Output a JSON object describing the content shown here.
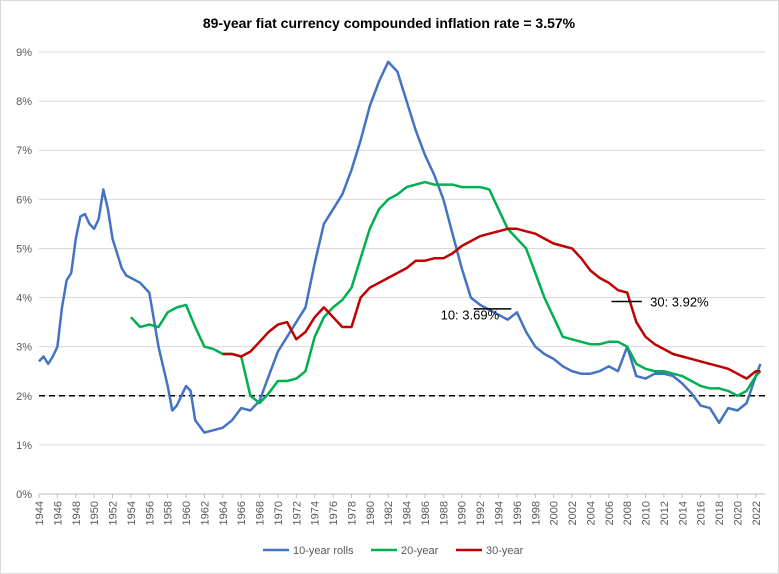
{
  "chart_data": {
    "type": "line",
    "title": "89-year fiat currency compounded inflation rate = 3.57%",
    "xlabel": "",
    "ylabel": "",
    "xlim": [
      1944,
      2023
    ],
    "ylim": [
      0,
      9
    ],
    "y_tick_labels": [
      "0%",
      "1%",
      "2%",
      "3%",
      "4%",
      "5%",
      "6%",
      "7%",
      "8%",
      "9%"
    ],
    "x_tick_labels": [
      "1944",
      "1946",
      "1948",
      "1950",
      "1952",
      "1954",
      "1956",
      "1958",
      "1960",
      "1962",
      "1964",
      "1966",
      "1968",
      "1970",
      "1972",
      "1974",
      "1976",
      "1978",
      "1980",
      "1982",
      "1984",
      "1986",
      "1988",
      "1990",
      "1992",
      "1994",
      "1996",
      "1998",
      "2000",
      "2002",
      "2004",
      "2006",
      "2008",
      "2010",
      "2012",
      "2014",
      "2016",
      "2018",
      "2020",
      "2022"
    ],
    "grid": "horizontal",
    "legend_position": "bottom",
    "colors": {
      "s10": "#4472c4",
      "s20": "#00b050",
      "s30": "#c00000",
      "ref": "#000000"
    },
    "reference_line": {
      "y": 2.0,
      "style": "dashed"
    },
    "series": [
      {
        "name": "10-year rolls",
        "points": [
          [
            1944,
            2.7
          ],
          [
            1944.5,
            2.8
          ],
          [
            1945,
            2.65
          ],
          [
            1945.5,
            2.8
          ],
          [
            1946,
            3.0
          ],
          [
            1946.5,
            3.8
          ],
          [
            1947,
            4.35
          ],
          [
            1947.5,
            4.5
          ],
          [
            1948,
            5.2
          ],
          [
            1948.5,
            5.65
          ],
          [
            1949,
            5.7
          ],
          [
            1949.5,
            5.5
          ],
          [
            1950,
            5.4
          ],
          [
            1950.5,
            5.6
          ],
          [
            1951,
            6.2
          ],
          [
            1951.5,
            5.8
          ],
          [
            1952,
            5.2
          ],
          [
            1952.5,
            4.9
          ],
          [
            1953,
            4.6
          ],
          [
            1953.5,
            4.45
          ],
          [
            1954,
            4.4
          ],
          [
            1955,
            4.3
          ],
          [
            1956,
            4.1
          ],
          [
            1957,
            3.0
          ],
          [
            1958,
            2.2
          ],
          [
            1958.5,
            1.7
          ],
          [
            1959,
            1.8
          ],
          [
            1959.5,
            2.0
          ],
          [
            1960,
            2.2
          ],
          [
            1960.5,
            2.1
          ],
          [
            1961,
            1.5
          ],
          [
            1962,
            1.25
          ],
          [
            1963,
            1.3
          ],
          [
            1964,
            1.35
          ],
          [
            1965,
            1.5
          ],
          [
            1966,
            1.75
          ],
          [
            1967,
            1.7
          ],
          [
            1968,
            1.9
          ],
          [
            1969,
            2.4
          ],
          [
            1970,
            2.9
          ],
          [
            1971,
            3.2
          ],
          [
            1972,
            3.5
          ],
          [
            1973,
            3.8
          ],
          [
            1974,
            4.7
          ],
          [
            1975,
            5.5
          ],
          [
            1976,
            5.8
          ],
          [
            1977,
            6.1
          ],
          [
            1978,
            6.6
          ],
          [
            1979,
            7.2
          ],
          [
            1980,
            7.9
          ],
          [
            1981,
            8.4
          ],
          [
            1982,
            8.8
          ],
          [
            1983,
            8.6
          ],
          [
            1984,
            8.0
          ],
          [
            1985,
            7.4
          ],
          [
            1986,
            6.9
          ],
          [
            1987,
            6.5
          ],
          [
            1988,
            6.0
          ],
          [
            1989,
            5.3
          ],
          [
            1990,
            4.6
          ],
          [
            1991,
            4.0
          ],
          [
            1992,
            3.85
          ],
          [
            1993,
            3.75
          ],
          [
            1994,
            3.65
          ],
          [
            1995,
            3.55
          ],
          [
            1996,
            3.7
          ],
          [
            1997,
            3.3
          ],
          [
            1998,
            3.0
          ],
          [
            1999,
            2.85
          ],
          [
            2000,
            2.75
          ],
          [
            2001,
            2.6
          ],
          [
            2002,
            2.5
          ],
          [
            2003,
            2.45
          ],
          [
            2004,
            2.45
          ],
          [
            2005,
            2.5
          ],
          [
            2006,
            2.6
          ],
          [
            2007,
            2.5
          ],
          [
            2008,
            3.0
          ],
          [
            2009,
            2.4
          ],
          [
            2010,
            2.35
          ],
          [
            2011,
            2.45
          ],
          [
            2012,
            2.45
          ],
          [
            2013,
            2.4
          ],
          [
            2014,
            2.25
          ],
          [
            2015,
            2.05
          ],
          [
            2016,
            1.8
          ],
          [
            2017,
            1.75
          ],
          [
            2018,
            1.45
          ],
          [
            2019,
            1.75
          ],
          [
            2020,
            1.7
          ],
          [
            2021,
            1.85
          ],
          [
            2022,
            2.4
          ],
          [
            2022.5,
            2.65
          ]
        ]
      },
      {
        "name": "20-year",
        "points": [
          [
            1954,
            3.6
          ],
          [
            1955,
            3.4
          ],
          [
            1956,
            3.45
          ],
          [
            1957,
            3.4
          ],
          [
            1958,
            3.7
          ],
          [
            1959,
            3.8
          ],
          [
            1960,
            3.85
          ],
          [
            1961,
            3.4
          ],
          [
            1962,
            3.0
          ],
          [
            1963,
            2.95
          ],
          [
            1964,
            2.85
          ],
          [
            1965,
            2.85
          ],
          [
            1966,
            2.8
          ],
          [
            1967,
            2.0
          ],
          [
            1968,
            1.85
          ],
          [
            1969,
            2.05
          ],
          [
            1970,
            2.3
          ],
          [
            1971,
            2.3
          ],
          [
            1972,
            2.35
          ],
          [
            1973,
            2.5
          ],
          [
            1974,
            3.2
          ],
          [
            1975,
            3.6
          ],
          [
            1976,
            3.8
          ],
          [
            1977,
            3.95
          ],
          [
            1978,
            4.2
          ],
          [
            1979,
            4.8
          ],
          [
            1980,
            5.4
          ],
          [
            1981,
            5.8
          ],
          [
            1982,
            6.0
          ],
          [
            1983,
            6.1
          ],
          [
            1984,
            6.25
          ],
          [
            1985,
            6.3
          ],
          [
            1986,
            6.35
          ],
          [
            1987,
            6.3
          ],
          [
            1988,
            6.3
          ],
          [
            1989,
            6.3
          ],
          [
            1990,
            6.25
          ],
          [
            1991,
            6.25
          ],
          [
            1992,
            6.25
          ],
          [
            1993,
            6.2
          ],
          [
            1994,
            5.8
          ],
          [
            1995,
            5.4
          ],
          [
            1996,
            5.2
          ],
          [
            1997,
            5.0
          ],
          [
            1998,
            4.5
          ],
          [
            1999,
            4.0
          ],
          [
            2000,
            3.6
          ],
          [
            2001,
            3.2
          ],
          [
            2002,
            3.15
          ],
          [
            2003,
            3.1
          ],
          [
            2004,
            3.05
          ],
          [
            2005,
            3.05
          ],
          [
            2006,
            3.1
          ],
          [
            2007,
            3.1
          ],
          [
            2008,
            3.0
          ],
          [
            2009,
            2.65
          ],
          [
            2010,
            2.55
          ],
          [
            2011,
            2.5
          ],
          [
            2012,
            2.5
          ],
          [
            2013,
            2.45
          ],
          [
            2014,
            2.4
          ],
          [
            2015,
            2.3
          ],
          [
            2016,
            2.2
          ],
          [
            2017,
            2.15
          ],
          [
            2018,
            2.15
          ],
          [
            2019,
            2.1
          ],
          [
            2020,
            2.0
          ],
          [
            2021,
            2.1
          ],
          [
            2022,
            2.4
          ],
          [
            2022.5,
            2.5
          ]
        ]
      },
      {
        "name": "30-year",
        "points": [
          [
            1964,
            2.85
          ],
          [
            1965,
            2.85
          ],
          [
            1966,
            2.8
          ],
          [
            1967,
            2.9
          ],
          [
            1968,
            3.1
          ],
          [
            1969,
            3.3
          ],
          [
            1970,
            3.45
          ],
          [
            1971,
            3.5
          ],
          [
            1972,
            3.15
          ],
          [
            1973,
            3.3
          ],
          [
            1974,
            3.6
          ],
          [
            1975,
            3.8
          ],
          [
            1976,
            3.6
          ],
          [
            1977,
            3.4
          ],
          [
            1978,
            3.4
          ],
          [
            1979,
            4.0
          ],
          [
            1980,
            4.2
          ],
          [
            1981,
            4.3
          ],
          [
            1982,
            4.4
          ],
          [
            1983,
            4.5
          ],
          [
            1984,
            4.6
          ],
          [
            1985,
            4.75
          ],
          [
            1986,
            4.75
          ],
          [
            1987,
            4.8
          ],
          [
            1988,
            4.8
          ],
          [
            1989,
            4.9
          ],
          [
            1990,
            5.05
          ],
          [
            1991,
            5.15
          ],
          [
            1992,
            5.25
          ],
          [
            1993,
            5.3
          ],
          [
            1994,
            5.35
          ],
          [
            1995,
            5.4
          ],
          [
            1996,
            5.4
          ],
          [
            1997,
            5.35
          ],
          [
            1998,
            5.3
          ],
          [
            1999,
            5.2
          ],
          [
            2000,
            5.1
          ],
          [
            2001,
            5.05
          ],
          [
            2002,
            5.0
          ],
          [
            2003,
            4.8
          ],
          [
            2004,
            4.55
          ],
          [
            2005,
            4.4
          ],
          [
            2006,
            4.3
          ],
          [
            2007,
            4.15
          ],
          [
            2008,
            4.1
          ],
          [
            2009,
            3.5
          ],
          [
            2010,
            3.2
          ],
          [
            2011,
            3.05
          ],
          [
            2012,
            2.95
          ],
          [
            2013,
            2.85
          ],
          [
            2014,
            2.8
          ],
          [
            2015,
            2.75
          ],
          [
            2016,
            2.7
          ],
          [
            2017,
            2.65
          ],
          [
            2018,
            2.6
          ],
          [
            2019,
            2.55
          ],
          [
            2020,
            2.45
          ],
          [
            2021,
            2.35
          ],
          [
            2022,
            2.5
          ],
          [
            2022.5,
            2.5
          ]
        ]
      }
    ],
    "annotations": [
      {
        "text": "10: 3.69%",
        "x": 1987.7,
        "y": 3.65,
        "marker_x": [
          1991.3,
          1995.4
        ],
        "marker_y": 3.77
      },
      {
        "text": "30: 3.92%",
        "x": 2010.5,
        "y": 3.92,
        "marker_x": [
          2006.3,
          2009.6
        ],
        "marker_y": 3.92
      }
    ]
  }
}
